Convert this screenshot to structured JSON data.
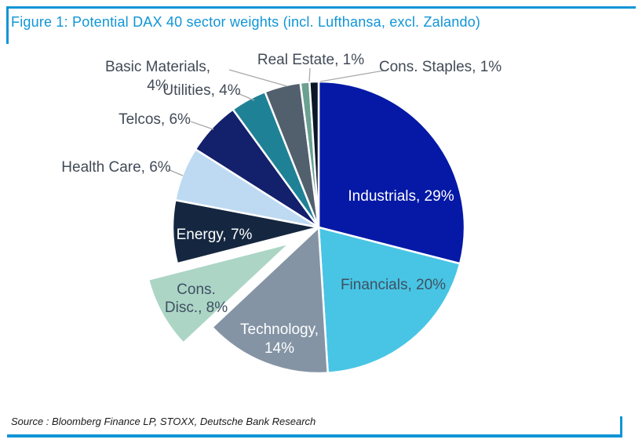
{
  "figure": {
    "title": "Figure 1: Potential DAX 40 sector weights (incl. Lufthansa, excl. Zalando)",
    "source": "Source : Bloomberg Finance LP, STOXX, Deutsche Bank Research",
    "accent_color": "#1095d6"
  },
  "chart_data": {
    "type": "pie",
    "title": "Potential DAX 40 sector weights (incl. Lufthansa, excl. Zalando)",
    "start_angle_deg": 0,
    "direction": "clockwise",
    "total": 100,
    "label_format": "name, value%",
    "legend": "none",
    "slices": [
      {
        "label": "Industrials",
        "value": 29,
        "color": "#0519a6",
        "label_color": "#ffffff",
        "label_pos": "inside"
      },
      {
        "label": "Financials",
        "value": 20,
        "color": "#48c5e4",
        "label_color": "#3e5062",
        "label_pos": "inside"
      },
      {
        "label": "Technology",
        "value": 14,
        "color": "#8494a5",
        "label_color": "#ffffff",
        "label_pos": "inside"
      },
      {
        "label": "Cons. Disc.",
        "value": 8,
        "color": "#acd5c5",
        "label_color": "#3e5062",
        "label_pos": "inside",
        "exploded": true
      },
      {
        "label": "Energy",
        "value": 7,
        "color": "#152740",
        "label_color": "#ffffff",
        "label_pos": "inside"
      },
      {
        "label": "Health Care",
        "value": 6,
        "color": "#bedaf2",
        "label_color": "#414b57",
        "label_pos": "outside"
      },
      {
        "label": "Telcos",
        "value": 6,
        "color": "#13206b",
        "label_color": "#414b57",
        "label_pos": "outside"
      },
      {
        "label": "Utilities",
        "value": 4,
        "color": "#1f8196",
        "label_color": "#414b57",
        "label_pos": "outside"
      },
      {
        "label": "Basic Materials",
        "value": 4,
        "color": "#525f6d",
        "label_color": "#414b57",
        "label_pos": "outside"
      },
      {
        "label": "Real Estate",
        "value": 1,
        "color": "#6aa191",
        "label_color": "#414b57",
        "label_pos": "outside"
      },
      {
        "label": "Cons. Staples",
        "value": 1,
        "color": "#0b1728",
        "label_color": "#414b57",
        "label_pos": "outside"
      }
    ]
  }
}
